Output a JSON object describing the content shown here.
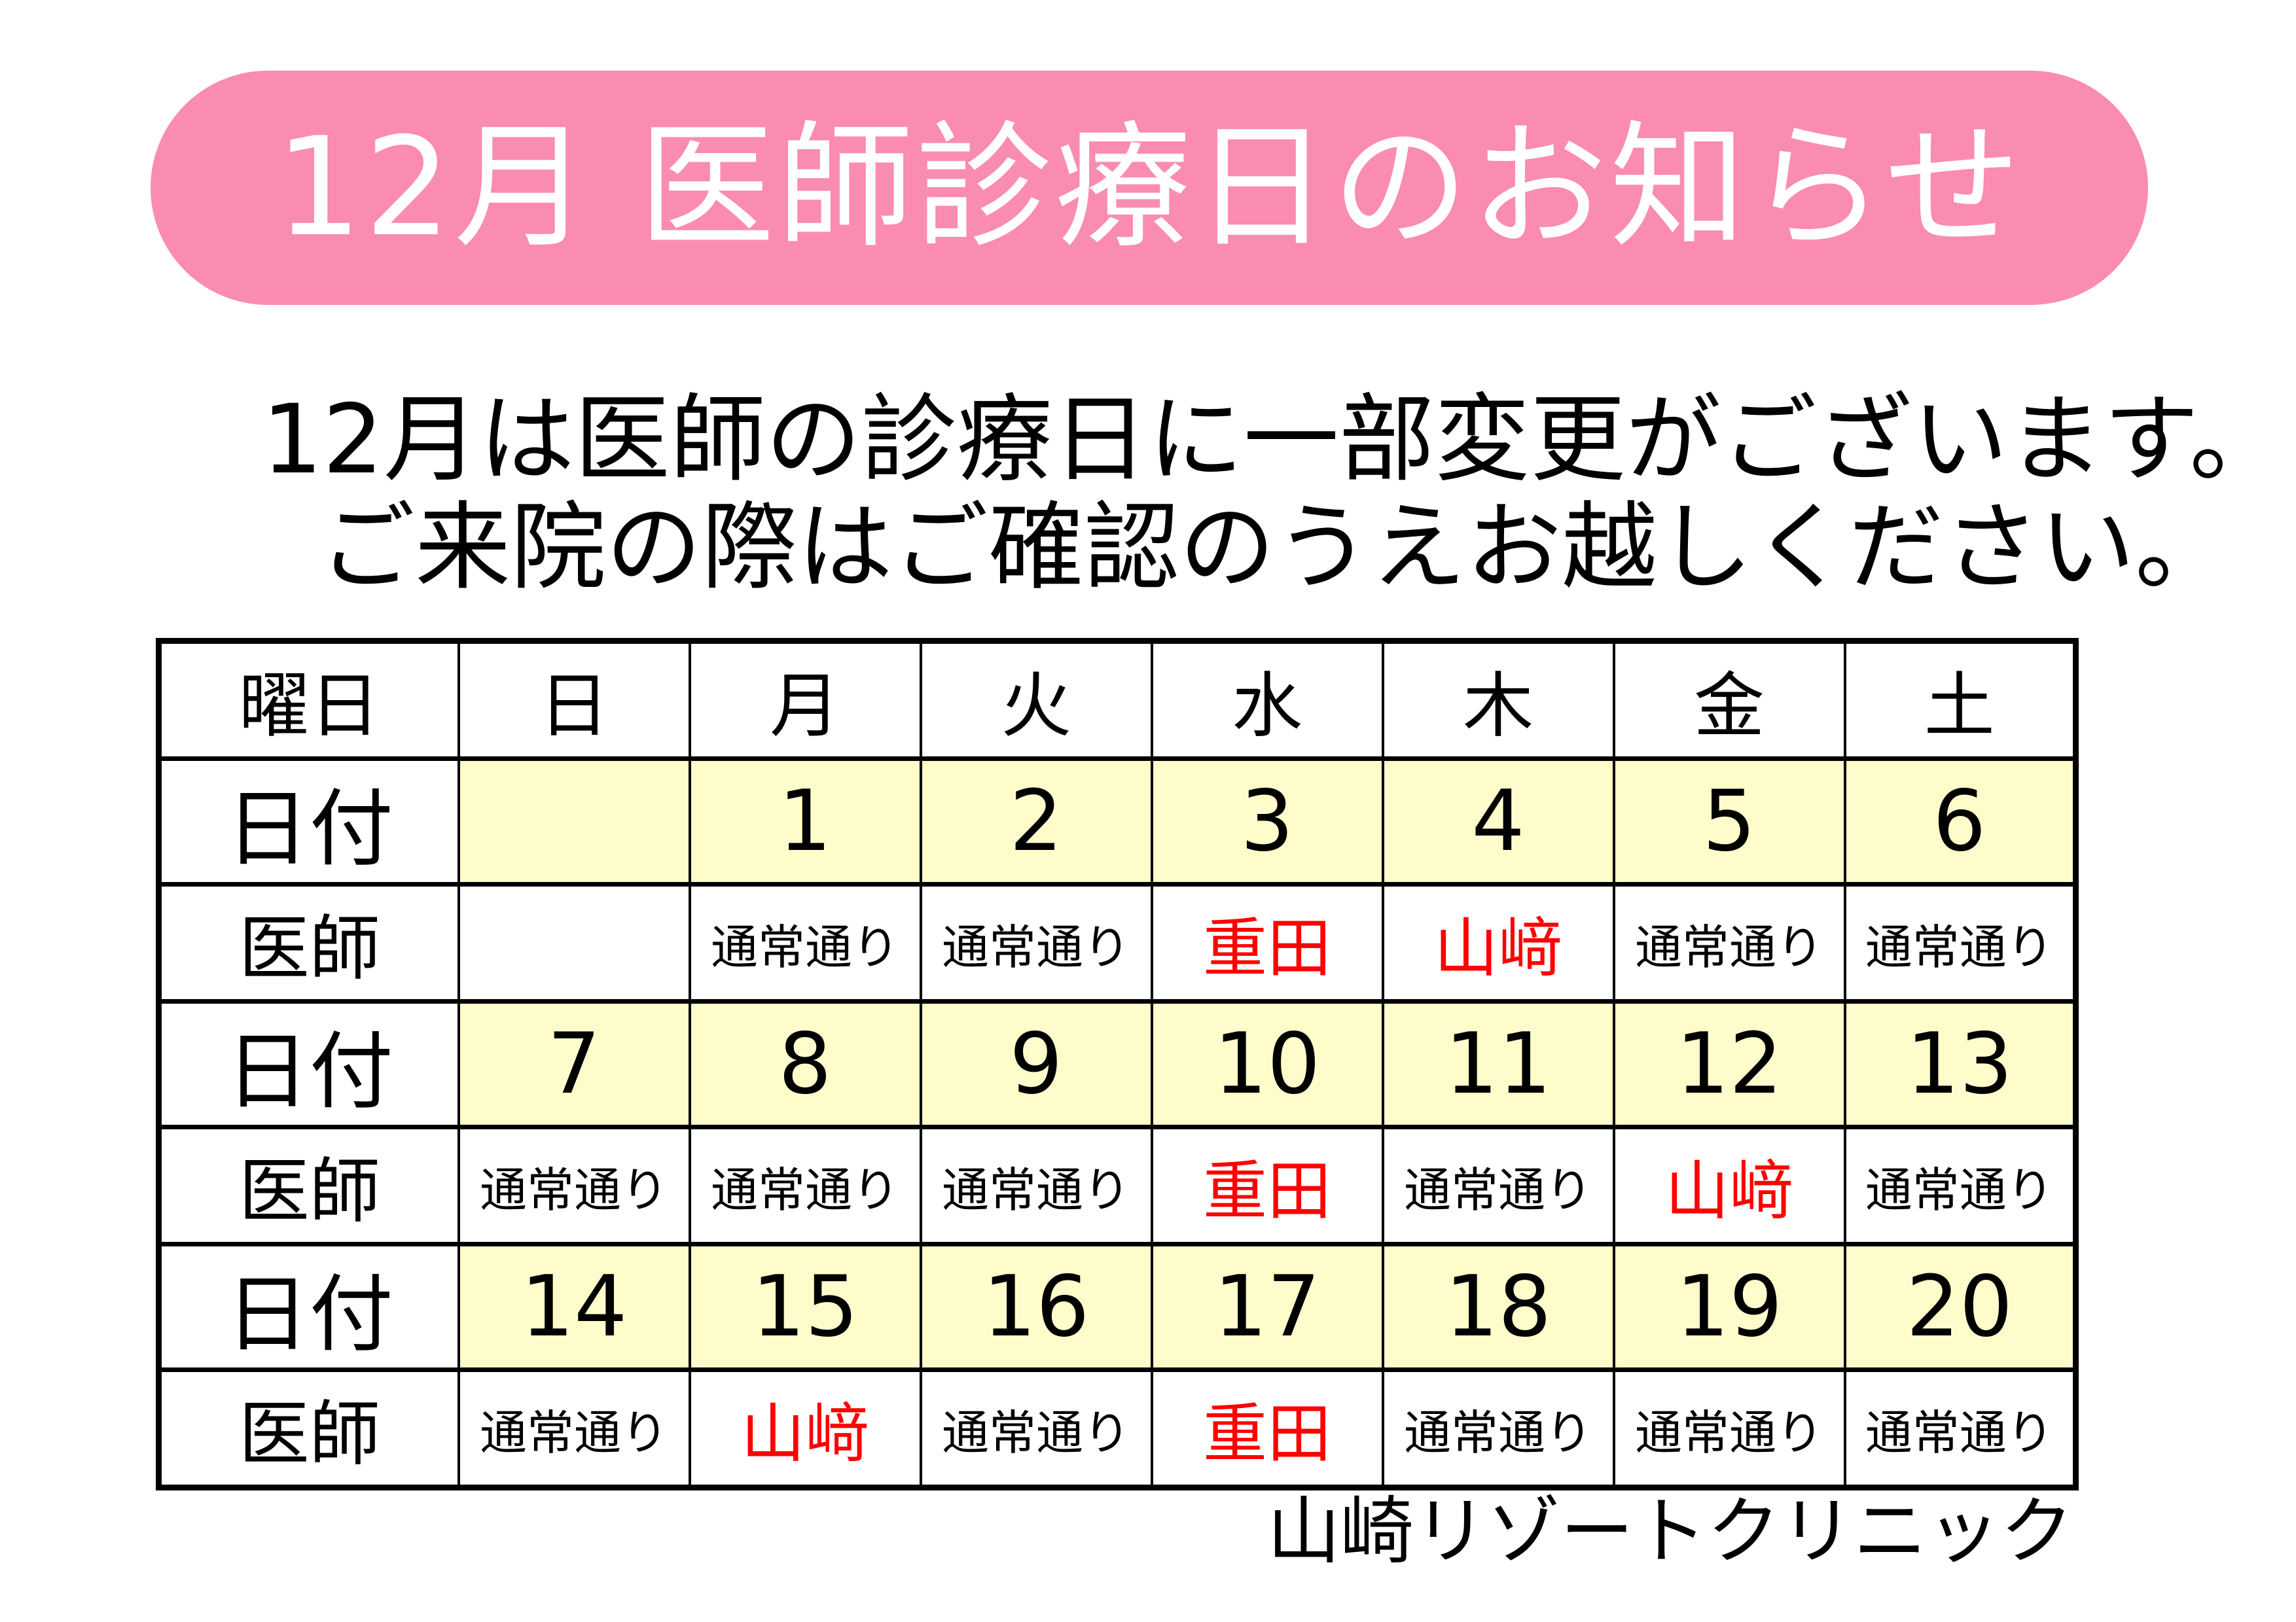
{
  "banner": {
    "title": "12月 医師診療日のお知らせ"
  },
  "notice": {
    "line1": "12月は医師の診療日に一部変更がございます。",
    "line2": "ご来院の際はご確認のうえお越しください。"
  },
  "table": {
    "corner_label": "曜日",
    "date_row_label": "日付",
    "doctor_row_label": "医師",
    "weekdays": [
      "日",
      "月",
      "火",
      "水",
      "木",
      "金",
      "土"
    ],
    "weeks": [
      {
        "dates": [
          "",
          "1",
          "2",
          "3",
          "4",
          "5",
          "6"
        ],
        "doctors": [
          {
            "text": "",
            "changed": false
          },
          {
            "text": "通常通り",
            "changed": false
          },
          {
            "text": "通常通り",
            "changed": false
          },
          {
            "text": "重田",
            "changed": true
          },
          {
            "text": "山﨑",
            "changed": true
          },
          {
            "text": "通常通り",
            "changed": false
          },
          {
            "text": "通常通り",
            "changed": false
          }
        ]
      },
      {
        "dates": [
          "7",
          "8",
          "9",
          "10",
          "11",
          "12",
          "13"
        ],
        "doctors": [
          {
            "text": "通常通り",
            "changed": false
          },
          {
            "text": "通常通り",
            "changed": false
          },
          {
            "text": "通常通り",
            "changed": false
          },
          {
            "text": "重田",
            "changed": true
          },
          {
            "text": "通常通り",
            "changed": false
          },
          {
            "text": "山﨑",
            "changed": true
          },
          {
            "text": "通常通り",
            "changed": false
          }
        ]
      },
      {
        "dates": [
          "14",
          "15",
          "16",
          "17",
          "18",
          "19",
          "20"
        ],
        "doctors": [
          {
            "text": "通常通り",
            "changed": false
          },
          {
            "text": "山﨑",
            "changed": true
          },
          {
            "text": "通常通り",
            "changed": false
          },
          {
            "text": "重田",
            "changed": true
          },
          {
            "text": "通常通り",
            "changed": false
          },
          {
            "text": "通常通り",
            "changed": false
          },
          {
            "text": "通常通り",
            "changed": false
          }
        ]
      }
    ]
  },
  "footer": {
    "clinic_name": "山崎リゾートクリニック"
  },
  "colors": {
    "banner_pink": "#FA8CB1",
    "banner_text": "#FFFFFF",
    "date_row_yellow": "#FFFCCB",
    "changed_doctor_red": "#FF0000",
    "text_black": "#000000",
    "border_black": "#000000"
  }
}
